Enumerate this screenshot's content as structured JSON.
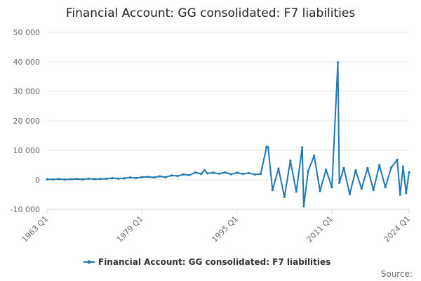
{
  "chart_data": {
    "type": "line",
    "title": "Financial Account: GG consolidated: F7 liabilities",
    "xlabel": "",
    "ylabel": "",
    "x_tick_labels": [
      "1963 Q1",
      "1979 Q1",
      "1995 Q1",
      "2011 Q1",
      "2024 Q1"
    ],
    "y_tick_labels": [
      "-10 000",
      "0",
      "10 000",
      "20 000",
      "30 000",
      "40 000",
      "50 000"
    ],
    "y_ticks": [
      -10000,
      0,
      10000,
      20000,
      30000,
      40000,
      50000
    ],
    "ylim": [
      -10000,
      50000
    ],
    "grid": "horizontal",
    "legend_position": "bottom",
    "series": [
      {
        "name": "Financial Account: GG consolidated: F7 liabilities",
        "color": "#1f78b4",
        "points": [
          [
            "1963 Q1",
            200
          ],
          [
            "1964 Q1",
            150
          ],
          [
            "1965 Q1",
            250
          ],
          [
            "1966 Q1",
            100
          ],
          [
            "1967 Q1",
            200
          ],
          [
            "1968 Q1",
            300
          ],
          [
            "1969 Q1",
            150
          ],
          [
            "1970 Q1",
            400
          ],
          [
            "1971 Q1",
            250
          ],
          [
            "1972 Q1",
            300
          ],
          [
            "1973 Q1",
            350
          ],
          [
            "1974 Q1",
            600
          ],
          [
            "1975 Q1",
            400
          ],
          [
            "1976 Q1",
            500
          ],
          [
            "1977 Q1",
            800
          ],
          [
            "1978 Q1",
            600
          ],
          [
            "1979 Q1",
            900
          ],
          [
            "1980 Q1",
            1000
          ],
          [
            "1981 Q1",
            800
          ],
          [
            "1982 Q1",
            1200
          ],
          [
            "1983 Q1",
            900
          ],
          [
            "1984 Q1",
            1500
          ],
          [
            "1985 Q1",
            1300
          ],
          [
            "1986 Q1",
            1800
          ],
          [
            "1987 Q1",
            1600
          ],
          [
            "1988 Q1",
            2500
          ],
          [
            "1989 Q1",
            2000
          ],
          [
            "1989 Q3",
            3300
          ],
          [
            "1990 Q1",
            2200
          ],
          [
            "1991 Q1",
            2400
          ],
          [
            "1992 Q1",
            2100
          ],
          [
            "1993 Q1",
            2500
          ],
          [
            "1994 Q1",
            1900
          ],
          [
            "1995 Q1",
            2400
          ],
          [
            "1996 Q1",
            2000
          ],
          [
            "1997 Q1",
            2300
          ],
          [
            "1998 Q1",
            1800
          ],
          [
            "1999 Q1",
            2000
          ],
          [
            "2000 Q1",
            11200
          ],
          [
            "2000 Q2",
            11000
          ],
          [
            "2001 Q1",
            -3500
          ],
          [
            "2002 Q1",
            3800
          ],
          [
            "2003 Q1",
            -5800
          ],
          [
            "2004 Q1",
            6500
          ],
          [
            "2005 Q1",
            -4000
          ],
          [
            "2006 Q1",
            11000
          ],
          [
            "2006 Q2",
            -9000
          ],
          [
            "2007 Q1",
            3000
          ],
          [
            "2008 Q1",
            8200
          ],
          [
            "2009 Q1",
            -3800
          ],
          [
            "2010 Q1",
            3500
          ],
          [
            "2011 Q1",
            -2500
          ],
          [
            "2012 Q1",
            39800
          ],
          [
            "2012 Q2",
            -1000
          ],
          [
            "2013 Q1",
            4000
          ],
          [
            "2014 Q1",
            -4800
          ],
          [
            "2015 Q1",
            3200
          ],
          [
            "2016 Q1",
            -3000
          ],
          [
            "2017 Q1",
            4000
          ],
          [
            "2018 Q1",
            -3500
          ],
          [
            "2019 Q1",
            5000
          ],
          [
            "2020 Q1",
            -2500
          ],
          [
            "2021 Q1",
            4200
          ],
          [
            "2022 Q1",
            6800
          ],
          [
            "2022 Q3",
            -5000
          ],
          [
            "2023 Q1",
            4500
          ],
          [
            "2023 Q3",
            -4500
          ],
          [
            "2024 Q1",
            2500
          ]
        ]
      }
    ]
  },
  "footer": {
    "source_label": "Source:"
  }
}
